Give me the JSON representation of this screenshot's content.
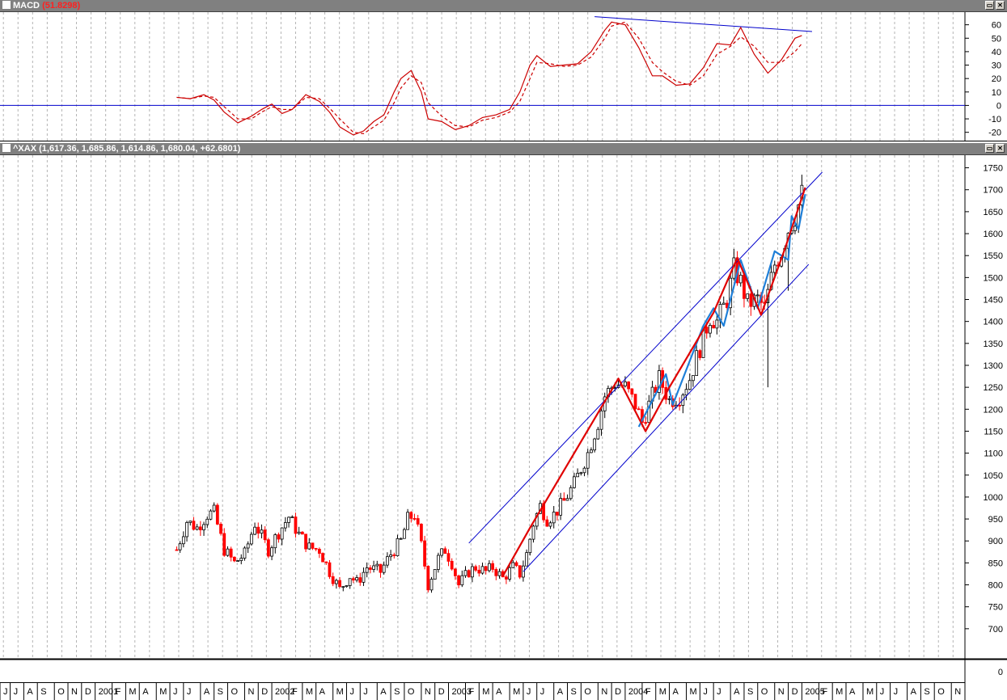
{
  "macd_panel": {
    "title_prefix": "MACD",
    "title_value": "(51.8298)",
    "btn_restore": "▭",
    "btn_close": "✕"
  },
  "price_panel": {
    "title_prefix": "^XAX",
    "title_values": "(1,617.36, 1,685.86, 1,614.86, 1,680.04, +62.6801)",
    "btn_restore": "▭",
    "btn_close": "✕"
  },
  "bottom_axis_zero": "0",
  "colors": {
    "up_candle": "#000000",
    "down_candle": "#ff0000",
    "channel": "#0000cc",
    "wave_red": "#e00000",
    "wave_blue": "#1e7fd8",
    "macd_line": "#cc0000",
    "grid": "#b4b4b4"
  },
  "chart_data": [
    {
      "type": "line",
      "name": "macd",
      "ylim": [
        -25,
        67
      ],
      "yticks": [
        -20,
        -10,
        0,
        10,
        20,
        30,
        40,
        50,
        60
      ],
      "series": [
        {
          "values": [
            [
              0,
              6
            ],
            [
              4,
              5
            ],
            [
              8,
              8
            ],
            [
              11,
              4
            ],
            [
              14,
              -5
            ],
            [
              18,
              -13
            ],
            [
              22,
              -8
            ],
            [
              25,
              -3
            ],
            [
              28,
              1
            ],
            [
              31,
              -6
            ],
            [
              34,
              -3
            ],
            [
              38,
              8
            ],
            [
              42,
              3
            ],
            [
              45,
              -5
            ],
            [
              48,
              -16
            ],
            [
              52,
              -22
            ],
            [
              55,
              -19
            ],
            [
              58,
              -12
            ],
            [
              61,
              -7
            ],
            [
              64,
              10
            ],
            [
              66,
              20
            ],
            [
              69,
              26
            ],
            [
              72,
              10
            ],
            [
              74,
              -10
            ],
            [
              78,
              -12
            ],
            [
              82,
              -18
            ],
            [
              86,
              -15
            ],
            [
              90,
              -9
            ],
            [
              94,
              -7
            ],
            [
              98,
              -3
            ],
            [
              101,
              10
            ],
            [
              104,
              30
            ],
            [
              106,
              37
            ],
            [
              110,
              29
            ],
            [
              114,
              30
            ],
            [
              118,
              31
            ],
            [
              122,
              40
            ],
            [
              126,
              56
            ],
            [
              128,
              62
            ],
            [
              132,
              60
            ],
            [
              136,
              43
            ],
            [
              140,
              22
            ],
            [
              143,
              22
            ],
            [
              147,
              15
            ],
            [
              151,
              16
            ],
            [
              155,
              28
            ],
            [
              159,
              46
            ],
            [
              163,
              45
            ],
            [
              166,
              58
            ],
            [
              170,
              38
            ],
            [
              174,
              24
            ],
            [
              178,
              34
            ],
            [
              182,
              50
            ],
            [
              184,
              52
            ]
          ]
        },
        {
          "values": [
            [
              0,
              6
            ],
            [
              4,
              5
            ],
            [
              8,
              7
            ],
            [
              11,
              6
            ],
            [
              14,
              -1
            ],
            [
              18,
              -10
            ],
            [
              22,
              -10
            ],
            [
              25,
              -5
            ],
            [
              28,
              -1
            ],
            [
              31,
              -3
            ],
            [
              34,
              -3
            ],
            [
              38,
              6
            ],
            [
              42,
              5
            ],
            [
              45,
              -2
            ],
            [
              48,
              -10
            ],
            [
              52,
              -20
            ],
            [
              55,
              -21
            ],
            [
              58,
              -16
            ],
            [
              61,
              -11
            ],
            [
              64,
              2
            ],
            [
              66,
              13
            ],
            [
              69,
              22
            ],
            [
              72,
              17
            ],
            [
              74,
              2
            ],
            [
              78,
              -8
            ],
            [
              82,
              -15
            ],
            [
              86,
              -16
            ],
            [
              90,
              -11
            ],
            [
              94,
              -9
            ],
            [
              98,
              -5
            ],
            [
              101,
              3
            ],
            [
              104,
              20
            ],
            [
              106,
              32
            ],
            [
              110,
              31
            ],
            [
              114,
              29
            ],
            [
              118,
              30
            ],
            [
              122,
              36
            ],
            [
              126,
              50
            ],
            [
              128,
              59
            ],
            [
              132,
              62
            ],
            [
              136,
              50
            ],
            [
              140,
              32
            ],
            [
              143,
              25
            ],
            [
              147,
              18
            ],
            [
              151,
              15
            ],
            [
              155,
              22
            ],
            [
              159,
              38
            ],
            [
              163,
              44
            ],
            [
              166,
              51
            ],
            [
              170,
              44
            ],
            [
              174,
              32
            ],
            [
              178,
              32
            ],
            [
              182,
              40
            ],
            [
              184,
              46
            ]
          ]
        }
      ],
      "trendline": [
        [
          123,
          66
        ],
        [
          187,
          55
        ]
      ]
    },
    {
      "type": "candlestick",
      "name": "^XAX",
      "ylim": [
        650,
        1775
      ],
      "yticks": [
        700,
        750,
        800,
        850,
        900,
        950,
        1000,
        1050,
        1100,
        1150,
        1200,
        1250,
        1300,
        1350,
        1400,
        1450,
        1500,
        1550,
        1600,
        1650,
        1700,
        1750
      ],
      "close_path": [
        [
          0,
          880
        ],
        [
          3,
          945
        ],
        [
          6,
          930
        ],
        [
          9,
          960
        ],
        [
          11,
          965
        ],
        [
          14,
          880
        ],
        [
          17,
          850
        ],
        [
          20,
          870
        ],
        [
          23,
          940
        ],
        [
          27,
          880
        ],
        [
          30,
          920
        ],
        [
          33,
          955
        ],
        [
          36,
          915
        ],
        [
          39,
          885
        ],
        [
          42,
          880
        ],
        [
          45,
          830
        ],
        [
          48,
          790
        ],
        [
          51,
          820
        ],
        [
          53,
          805
        ],
        [
          56,
          840
        ],
        [
          60,
          830
        ],
        [
          63,
          870
        ],
        [
          66,
          900
        ],
        [
          68,
          950
        ],
        [
          70,
          960
        ],
        [
          72,
          890
        ],
        [
          74,
          800
        ],
        [
          77,
          860
        ],
        [
          79,
          880
        ],
        [
          81,
          850
        ],
        [
          83,
          800
        ],
        [
          86,
          830
        ],
        [
          88,
          840
        ],
        [
          91,
          830
        ],
        [
          93,
          840
        ],
        [
          96,
          815
        ],
        [
          99,
          840
        ],
        [
          101,
          825
        ],
        [
          103,
          870
        ],
        [
          105,
          940
        ],
        [
          107,
          980
        ],
        [
          109,
          950
        ],
        [
          111,
          960
        ],
        [
          114,
          990
        ],
        [
          117,
          1030
        ],
        [
          121,
          1100
        ],
        [
          124,
          1170
        ],
        [
          126,
          1230
        ],
        [
          129,
          1260
        ],
        [
          132,
          1250
        ],
        [
          135,
          1210
        ],
        [
          137,
          1170
        ],
        [
          139,
          1210
        ],
        [
          142,
          1270
        ],
        [
          145,
          1220
        ],
        [
          148,
          1230
        ],
        [
          151,
          1270
        ],
        [
          154,
          1340
        ],
        [
          157,
          1410
        ],
        [
          159,
          1400
        ],
        [
          162,
          1450
        ],
        [
          164,
          1520
        ],
        [
          166,
          1490
        ],
        [
          168,
          1440
        ],
        [
          171,
          1450
        ],
        [
          173,
          1430
        ],
        [
          176,
          1530
        ],
        [
          178,
          1560
        ],
        [
          180,
          1610
        ],
        [
          182,
          1640
        ],
        [
          184,
          1690
        ]
      ],
      "channel_upper": [
        [
          86,
          895
        ],
        [
          190,
          1740
        ]
      ],
      "channel_lower": [
        [
          102,
          830
        ],
        [
          186,
          1530
        ]
      ],
      "wave_red": [
        [
          96,
          820
        ],
        [
          104,
          930
        ],
        [
          130,
          1270
        ],
        [
          138,
          1150
        ],
        [
          145,
          1250
        ],
        [
          158,
          1420
        ],
        [
          165,
          1545
        ],
        [
          172,
          1415
        ],
        [
          179,
          1565
        ],
        [
          185,
          1705
        ]
      ],
      "wave_blue": [
        [
          136,
          1160
        ],
        [
          144,
          1280
        ],
        [
          146,
          1210
        ],
        [
          155,
          1390
        ],
        [
          158,
          1430
        ],
        [
          161,
          1390
        ],
        [
          166,
          1540
        ],
        [
          171,
          1430
        ],
        [
          176,
          1560
        ],
        [
          180,
          1540
        ],
        [
          181,
          1640
        ],
        [
          183,
          1610
        ],
        [
          185,
          1690
        ]
      ],
      "long_wicks": [
        [
          174,
          1250,
          1460
        ],
        [
          180,
          1470,
          1560
        ]
      ]
    }
  ],
  "x_axis": {
    "labels": [
      "J",
      "J",
      "A",
      "S",
      "O",
      "N",
      "D",
      "2001",
      "F",
      "M",
      "A",
      "M",
      "J",
      "J",
      "A",
      "S",
      "O",
      "N",
      "D",
      "2002",
      "F",
      "M",
      "A",
      "M",
      "J",
      "J",
      "A",
      "S",
      "O",
      "N",
      "D",
      "2003",
      "F",
      "M",
      "A",
      "M",
      "J",
      "J",
      "A",
      "S",
      "O",
      "N",
      "D",
      "2004",
      "F",
      "M",
      "A",
      "M",
      "J",
      "J",
      "A",
      "S",
      "O",
      "N",
      "D",
      "2005",
      "F",
      "M",
      "A",
      "M",
      "J",
      "J",
      "A",
      "S",
      "O",
      "N"
    ],
    "label_weeks": [
      0,
      3,
      7,
      11,
      16,
      20,
      24,
      28,
      33,
      37,
      41,
      46,
      50,
      54,
      59,
      63,
      67,
      72,
      76,
      80,
      85,
      89,
      93,
      98,
      102,
      106,
      111,
      115,
      119,
      124,
      128,
      132,
      137,
      141,
      145,
      150,
      154,
      158,
      163,
      167,
      171,
      176,
      180,
      184,
      189,
      193,
      197,
      202,
      206,
      210,
      215,
      219,
      223,
      228,
      232,
      236,
      241,
      245,
      249,
      254,
      258,
      262,
      267,
      271,
      275,
      280
    ]
  }
}
